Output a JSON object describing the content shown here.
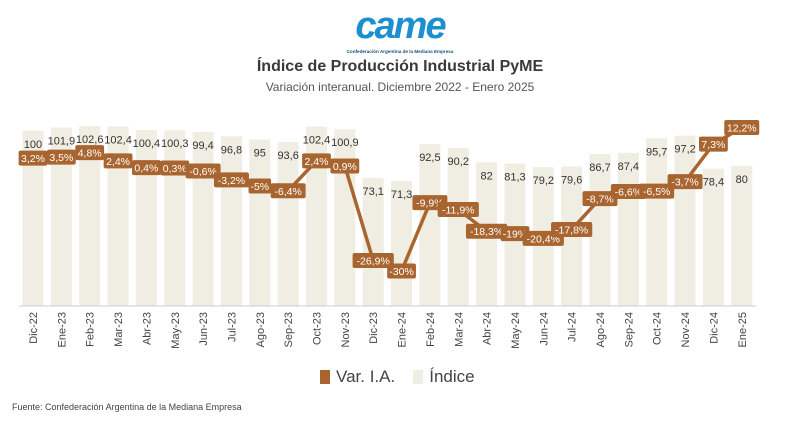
{
  "logo": {
    "brand": "came",
    "tagline": "Confederación Argentina de la Mediana Empresa"
  },
  "colors": {
    "bar": "#f0ede2",
    "line": "#a9652f",
    "label_bg": "#a9652f",
    "label_text": "#ffffff",
    "axis_text": "#444444"
  },
  "chart_data": {
    "type": "bar",
    "title": "Índice de Producción Industrial PyME",
    "subtitle": "Variación interanual. Diciembre 2022 - Enero 2025",
    "categories": [
      "Dic-22",
      "Ene-23",
      "Feb-23",
      "Mar-23",
      "Abr-23",
      "May-23",
      "Jun-23",
      "Jul-23",
      "Ago-23",
      "Sep-23",
      "Oct-23",
      "Nov-23",
      "Dic-23",
      "Ene-24",
      "Feb-24",
      "Mar-24",
      "Abr-24",
      "May-24",
      "Jun-24",
      "Jul-24",
      "Ago-24",
      "Sep-24",
      "Oct-24",
      "Nov-24",
      "Dic-24",
      "Ene-25"
    ],
    "series": [
      {
        "name": "Índice",
        "type": "bar",
        "values": [
          100,
          101.9,
          102.6,
          102.4,
          100.4,
          100.3,
          99.4,
          96.8,
          95,
          93.6,
          102.4,
          100.9,
          73.1,
          71.3,
          92.5,
          90.2,
          82,
          81.3,
          79.2,
          79.6,
          86.7,
          87.4,
          95.7,
          97.2,
          78.4,
          80
        ],
        "labels": [
          "100",
          "101,9",
          "102,6",
          "102,4",
          "100,4",
          "100,3",
          "99,4",
          "96,8",
          "95",
          "93,6",
          "102,4",
          "100,9",
          "73,1",
          "71,3",
          "92,5",
          "90,2",
          "82",
          "81,3",
          "79,2",
          "79,6",
          "86,7",
          "87,4",
          "95,7",
          "97,2",
          "78,4",
          "80"
        ]
      },
      {
        "name": "Var. I.A.",
        "type": "line",
        "values": [
          3.2,
          3.5,
          4.8,
          2.4,
          0.4,
          0.3,
          -0.6,
          -3.2,
          -5,
          -6.4,
          2.4,
          0.9,
          -26.9,
          -30,
          -9.9,
          -11.9,
          -18.3,
          -19,
          -20.4,
          -17.8,
          -8.7,
          -6.6,
          -6.5,
          -3.7,
          7.3,
          12.2
        ],
        "labels": [
          "3,2%",
          "3,5%",
          "4,8%",
          "2,4%",
          "0,4%",
          "0,3%",
          "-0,6%",
          "-3,2%",
          "-5%",
          "-6,4%",
          "2,4%",
          "0,9%",
          "-26,9%",
          "-30%",
          "-9,9%",
          "-11,9%",
          "-18,3%",
          "-19%",
          "-20,4%",
          "-17,8%",
          "-8,7%",
          "-6,6%",
          "-6,5%",
          "-3,7%",
          "7,3%",
          "12,2%"
        ]
      }
    ],
    "bar_ylim": [
      0,
      105
    ],
    "line_ylim": [
      -40,
      15
    ],
    "grid": false,
    "legend": {
      "position": "bottom",
      "items": [
        "Var. I.A.",
        "Índice"
      ]
    }
  },
  "source": "Fuente: Confederación Argentina de la Mediana Empresa"
}
